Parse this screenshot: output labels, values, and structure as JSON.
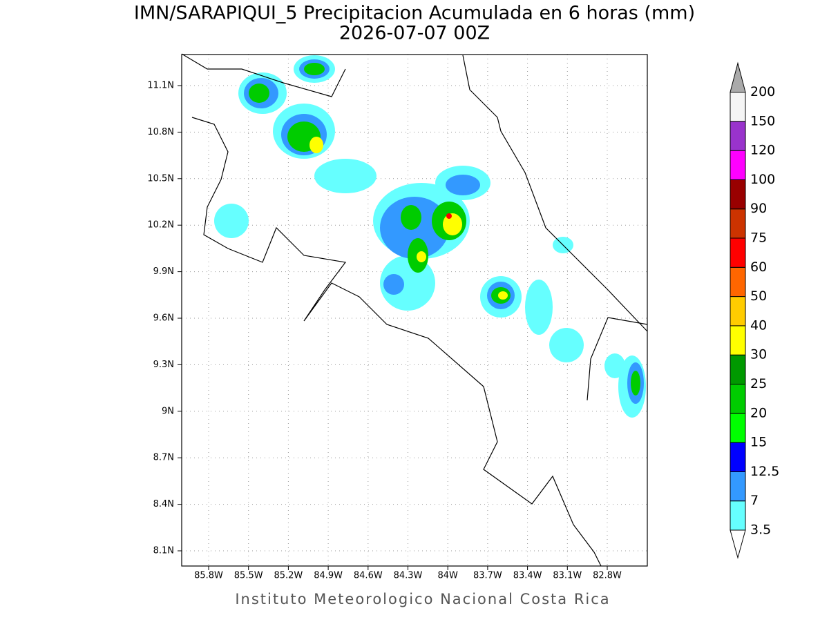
{
  "header": {
    "title": "IMN/SARAPIQUI_5 Precipitacion Acumulada en 6 horas (mm)",
    "subtitle": "2026-07-07 00Z"
  },
  "map": {
    "lon_labels": [
      "85.8W",
      "85.5W",
      "85.2W",
      "84.9W",
      "84.6W",
      "84.3W",
      "84W",
      "83.7W",
      "83.4W",
      "83.1W",
      "82.8W"
    ],
    "lat_labels": [
      "11.1N",
      "10.8N",
      "10.5N",
      "10.2N",
      "9.9N",
      "9.6N",
      "9.3N",
      "9N",
      "8.7N",
      "8.4N",
      "8.1N"
    ]
  },
  "colorbar": {
    "labels": [
      "3.5",
      "7",
      "12.5",
      "15",
      "20",
      "25",
      "30",
      "40",
      "50",
      "60",
      "75",
      "90",
      "100",
      "120",
      "150",
      "200"
    ],
    "colors": [
      "#66ffff",
      "#3399ff",
      "#0000ff",
      "#00ff00",
      "#00cc00",
      "#009900",
      "#ffff00",
      "#ffcc00",
      "#ff6600",
      "#ff0000",
      "#cc3300",
      "#990000",
      "#ff00ff",
      "#9933cc",
      "#f5f5f5"
    ],
    "under_color": "#ffffff",
    "over_color": "#aaaaaa"
  },
  "footer": {
    "credit": "Instituto Meteorologico Nacional Costa Rica"
  }
}
